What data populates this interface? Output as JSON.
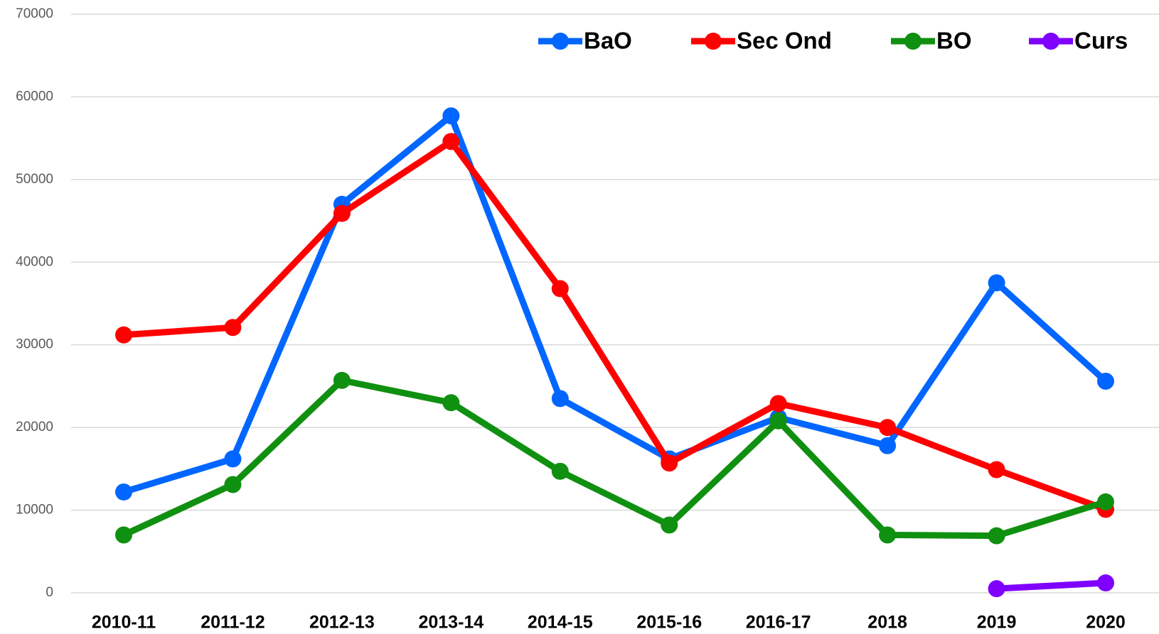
{
  "chart_data": {
    "type": "line",
    "categories": [
      "2010-11",
      "2011-12",
      "2012-13",
      "2013-14",
      "2014-15",
      "2015-16",
      "2016-17",
      "2018",
      "2019",
      "2020"
    ],
    "series": [
      {
        "name": "BaO",
        "color": "#0066ff",
        "values": [
          12200,
          16200,
          47000,
          57700,
          23500,
          16200,
          21200,
          17800,
          37500,
          25600
        ]
      },
      {
        "name": "Sec Ond",
        "color": "#ff0000",
        "values": [
          31200,
          32100,
          45900,
          54600,
          36800,
          15700,
          22900,
          20000,
          14900,
          10100
        ]
      },
      {
        "name": "BO",
        "color": "#109010",
        "values": [
          7000,
          13100,
          25700,
          23000,
          14700,
          8200,
          20800,
          7000,
          6900,
          11000
        ]
      },
      {
        "name": "Curs",
        "color": "#7f00ff",
        "values": [
          null,
          null,
          null,
          null,
          null,
          null,
          null,
          null,
          500,
          1200
        ]
      }
    ],
    "ylim": [
      0,
      70000
    ],
    "yticks": [
      0,
      10000,
      20000,
      30000,
      40000,
      50000,
      60000,
      70000
    ],
    "grid": true,
    "legend": "top-right"
  }
}
